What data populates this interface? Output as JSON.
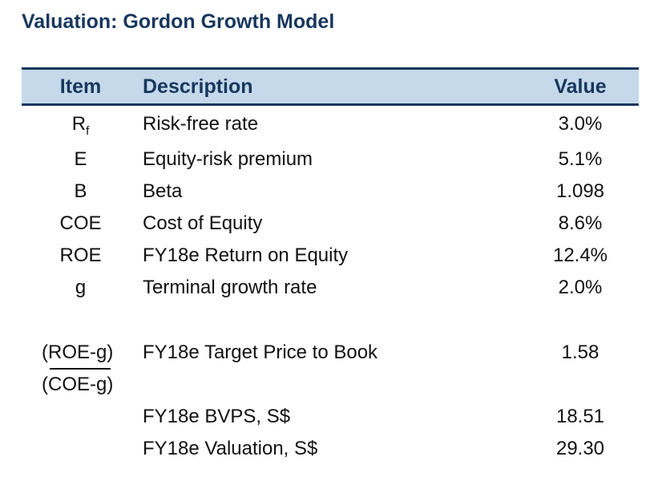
{
  "title": "Valuation: Gordon Growth Model",
  "header": {
    "item": "Item",
    "description": "Description",
    "value": "Value"
  },
  "rows": [
    {
      "item": "R",
      "item_sub": "f",
      "description": "Risk-free rate",
      "value": "3.0%"
    },
    {
      "item": "E",
      "description": "Equity-risk premium",
      "value": "5.1%"
    },
    {
      "item": "B",
      "description": "Beta",
      "value": "1.098"
    },
    {
      "item": "COE",
      "description": "Cost of Equity",
      "value": "8.6%"
    },
    {
      "item": "ROE",
      "description": "FY18e Return on Equity",
      "value": "12.4%"
    },
    {
      "item": "g",
      "description": "Terminal growth rate",
      "value": "2.0%"
    }
  ],
  "target": {
    "numerator": "(ROE-g)",
    "denominator": "(COE-g)",
    "description": "FY18e Target Price to Book",
    "value": "1.58"
  },
  "bvps": {
    "description": "FY18e BVPS, S$",
    "value": "18.51"
  },
  "valuation": {
    "description": "FY18e Valuation, S$",
    "value": "29.30"
  },
  "colors": {
    "title": "#17375e",
    "header_background": "#c5d9ea",
    "header_rule": "#17375e"
  }
}
